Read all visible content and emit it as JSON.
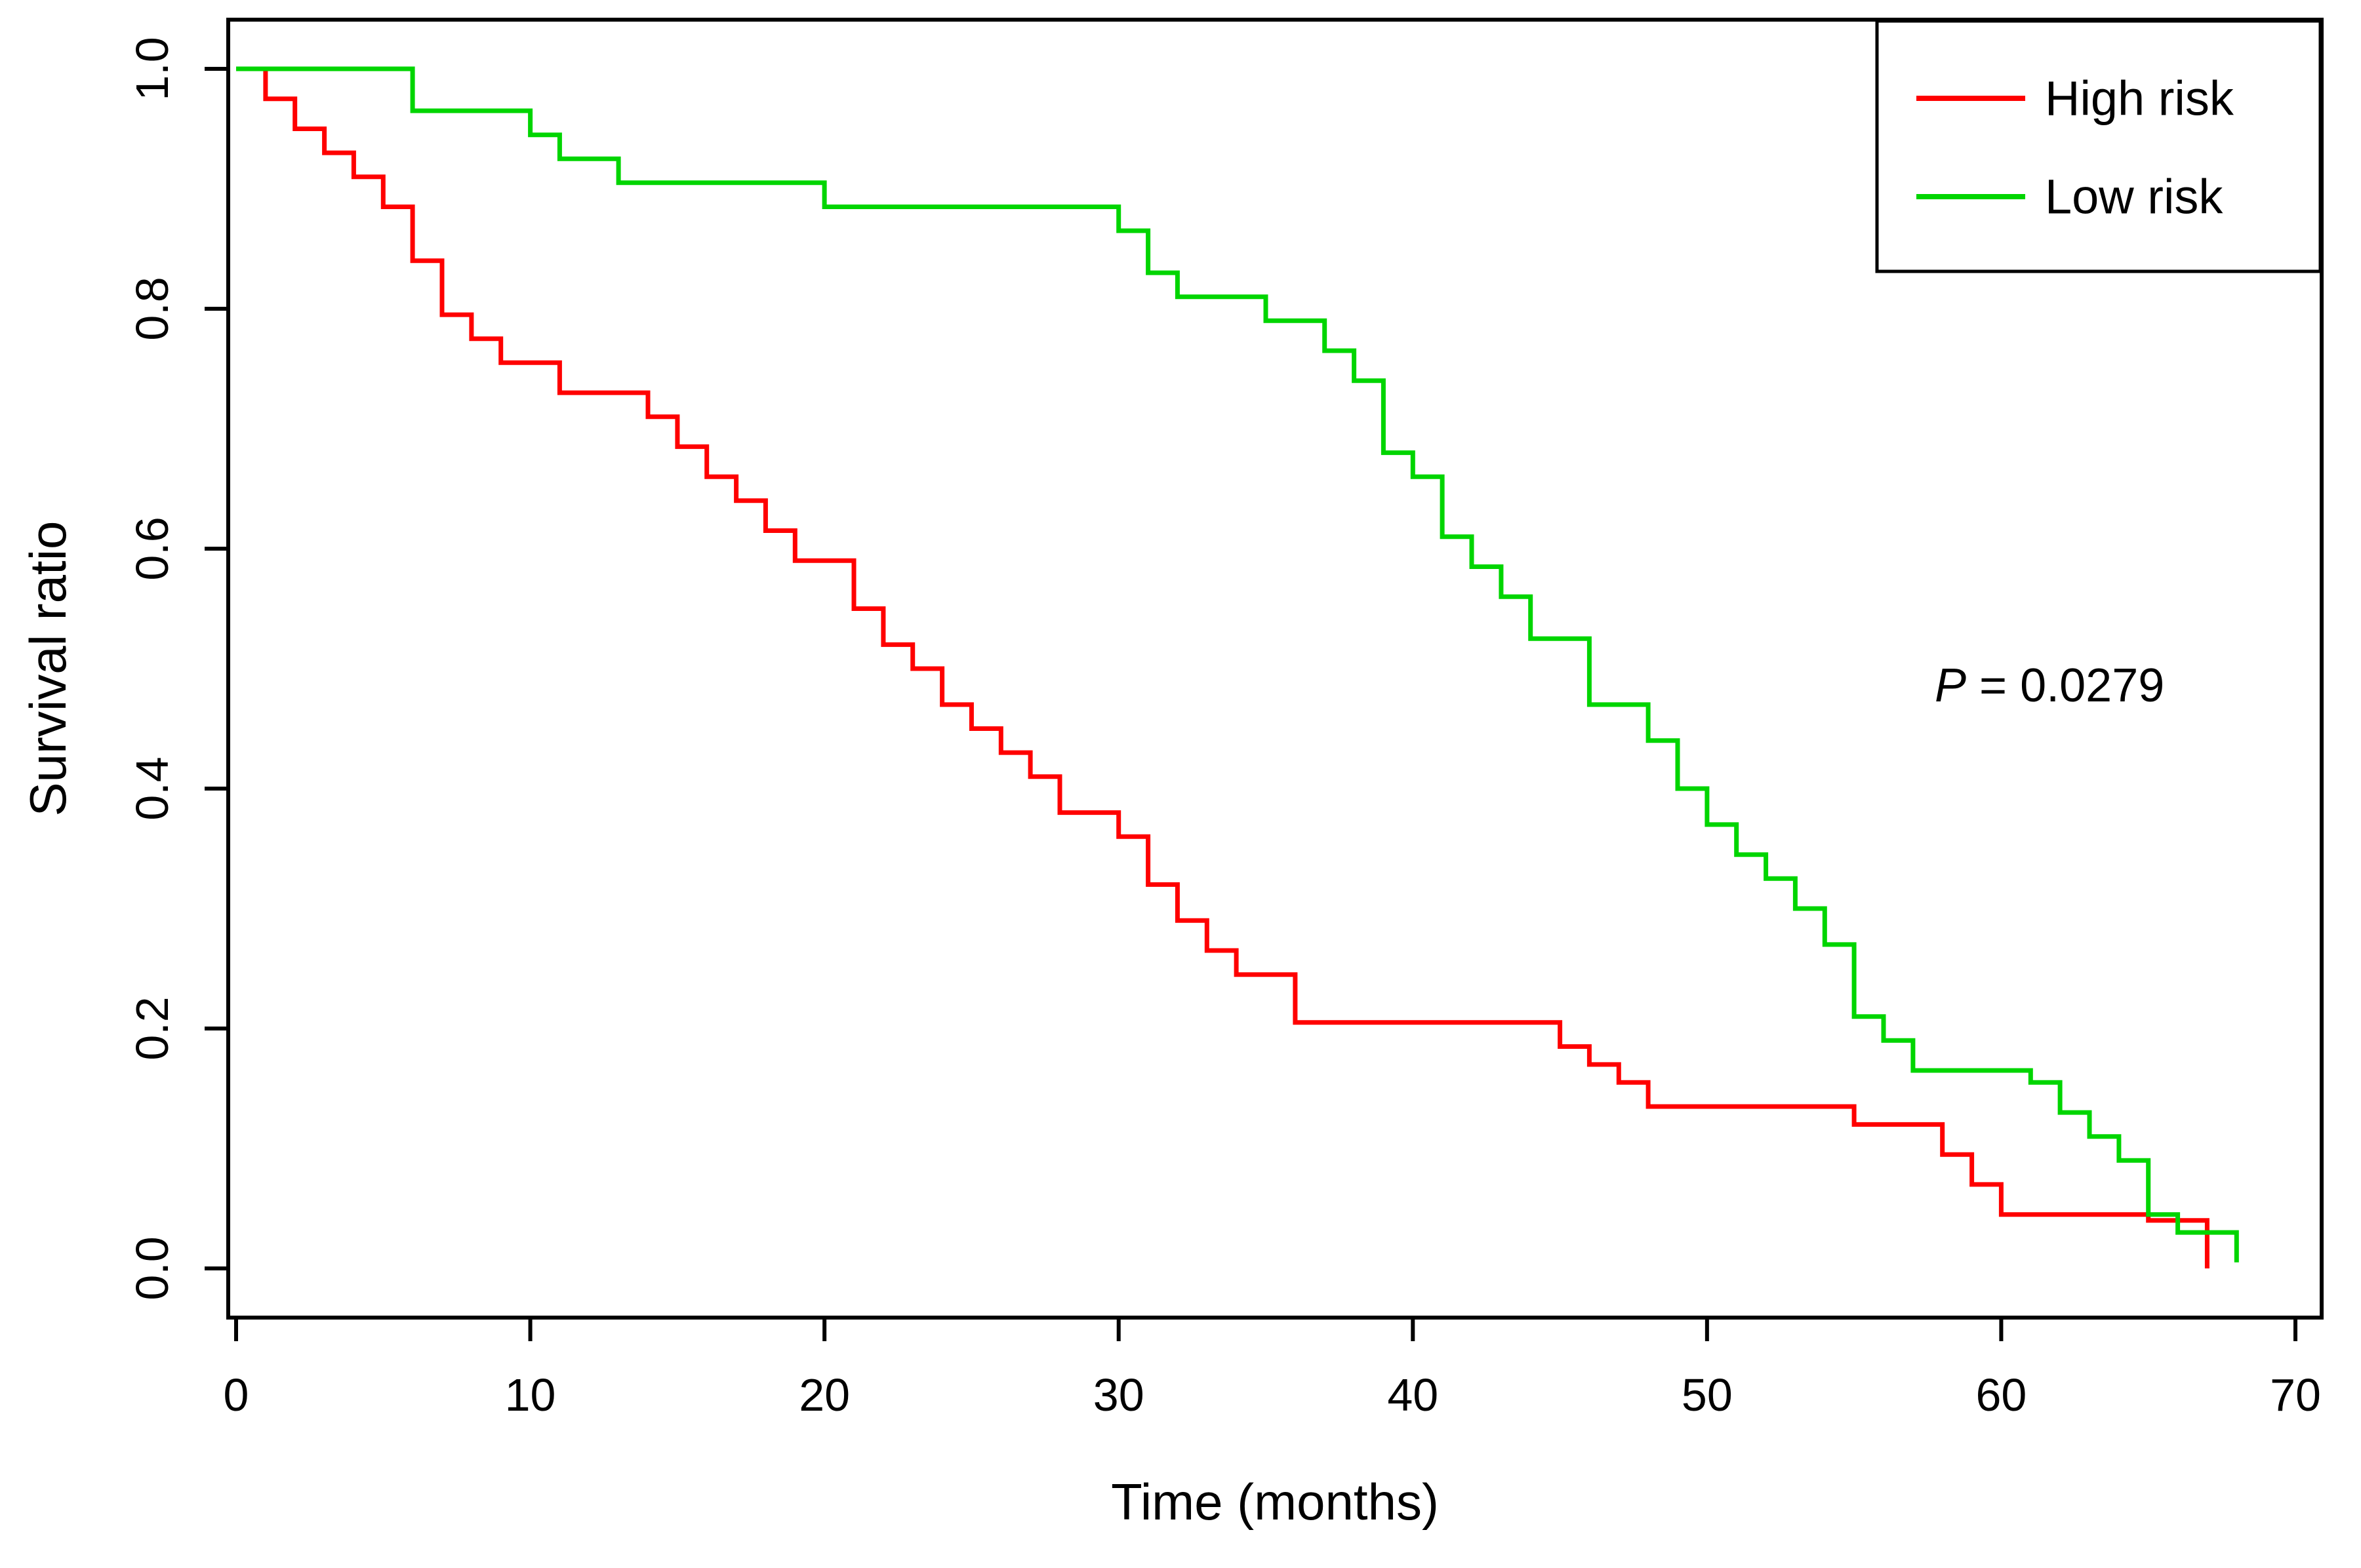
{
  "chart_data": {
    "type": "line",
    "subtype": "kaplan-meier-step",
    "title": "",
    "xlabel": "Time (months)",
    "ylabel": "Survival ratio",
    "xlim": [
      0,
      70
    ],
    "ylim": [
      0,
      1
    ],
    "grid": false,
    "legend_position": "top-right",
    "x_ticks": [
      0,
      10,
      20,
      30,
      40,
      50,
      60,
      70
    ],
    "x_tick_labels": [
      "0",
      "10",
      "20",
      "30",
      "40",
      "50",
      "60",
      "70"
    ],
    "y_ticks": [
      0.0,
      0.2,
      0.4,
      0.6,
      0.8,
      1.0
    ],
    "y_tick_labels": [
      "0.0",
      "0.2",
      "0.4",
      "0.6",
      "0.8",
      "1.0"
    ],
    "annotation": {
      "p_label": "P",
      "p_rest": " = 0.0279"
    },
    "colors": {
      "high_risk": "#ff0000",
      "low_risk": "#00d500",
      "axis": "#000000"
    },
    "legend": [
      {
        "label": "High risk",
        "color": "#ff0000"
      },
      {
        "label": "Low  risk",
        "color": "#00d500"
      }
    ],
    "series": [
      {
        "name": "High risk",
        "color": "#ff0000",
        "points": [
          [
            0,
            1.0
          ],
          [
            1,
            0.975
          ],
          [
            2,
            0.95
          ],
          [
            3,
            0.93
          ],
          [
            4,
            0.91
          ],
          [
            5,
            0.885
          ],
          [
            6,
            0.84
          ],
          [
            7,
            0.795
          ],
          [
            8,
            0.775
          ],
          [
            9,
            0.755
          ],
          [
            11,
            0.73
          ],
          [
            14,
            0.71
          ],
          [
            15,
            0.685
          ],
          [
            16,
            0.66
          ],
          [
            17,
            0.64
          ],
          [
            18,
            0.615
          ],
          [
            19,
            0.59
          ],
          [
            21,
            0.55
          ],
          [
            22,
            0.52
          ],
          [
            23,
            0.5
          ],
          [
            24,
            0.47
          ],
          [
            25,
            0.45
          ],
          [
            26,
            0.43
          ],
          [
            27,
            0.41
          ],
          [
            28,
            0.38
          ],
          [
            30,
            0.36
          ],
          [
            31,
            0.32
          ],
          [
            32,
            0.29
          ],
          [
            33,
            0.265
          ],
          [
            34,
            0.245
          ],
          [
            36,
            0.205
          ],
          [
            45,
            0.185
          ],
          [
            46,
            0.17
          ],
          [
            47,
            0.155
          ],
          [
            48,
            0.135
          ],
          [
            55,
            0.12
          ],
          [
            58,
            0.095
          ],
          [
            59,
            0.07
          ],
          [
            60,
            0.045
          ],
          [
            65,
            0.04
          ],
          [
            67,
            0.0
          ]
        ]
      },
      {
        "name": "Low risk",
        "color": "#00d500",
        "points": [
          [
            0,
            1.0
          ],
          [
            6,
            0.965
          ],
          [
            10,
            0.945
          ],
          [
            11,
            0.925
          ],
          [
            13,
            0.905
          ],
          [
            20,
            0.885
          ],
          [
            30,
            0.865
          ],
          [
            31,
            0.83
          ],
          [
            32,
            0.81
          ],
          [
            35,
            0.79
          ],
          [
            37,
            0.765
          ],
          [
            38,
            0.74
          ],
          [
            39,
            0.68
          ],
          [
            40,
            0.66
          ],
          [
            41,
            0.61
          ],
          [
            42,
            0.585
          ],
          [
            43,
            0.56
          ],
          [
            44,
            0.525
          ],
          [
            46,
            0.47
          ],
          [
            48,
            0.44
          ],
          [
            49,
            0.4
          ],
          [
            50,
            0.37
          ],
          [
            51,
            0.345
          ],
          [
            52,
            0.325
          ],
          [
            53,
            0.3
          ],
          [
            54,
            0.27
          ],
          [
            55,
            0.21
          ],
          [
            56,
            0.19
          ],
          [
            57,
            0.165
          ],
          [
            61,
            0.155
          ],
          [
            62,
            0.13
          ],
          [
            63,
            0.11
          ],
          [
            64,
            0.09
          ],
          [
            65,
            0.045
          ],
          [
            66,
            0.03
          ],
          [
            68,
            0.005
          ]
        ]
      }
    ]
  }
}
